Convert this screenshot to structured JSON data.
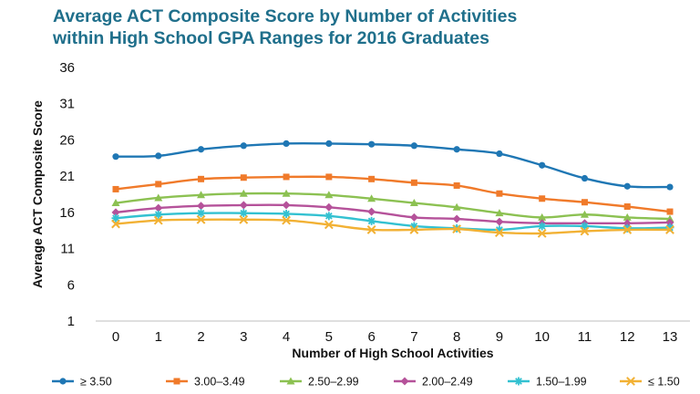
{
  "chart_data": {
    "type": "line",
    "title_lines": [
      "Average ACT Composite Score by Number of Activities",
      "within High School GPA Ranges for 2016 Graduates"
    ],
    "xlabel": "Number of High School Activities",
    "ylabel": "Average ACT Composite Score",
    "x": [
      0,
      1,
      2,
      3,
      4,
      5,
      6,
      7,
      8,
      9,
      10,
      11,
      12,
      13
    ],
    "x_ticks": [
      "0",
      "1",
      "2",
      "3",
      "4",
      "5",
      "6",
      "7",
      "8",
      "9",
      "10",
      "11",
      "12",
      "13"
    ],
    "y_ticks": [
      "1",
      "6",
      "11",
      "16",
      "21",
      "26",
      "31",
      "36"
    ],
    "ylim": [
      1,
      36
    ],
    "grid": false,
    "legend_position": "bottom",
    "series": [
      {
        "name": "≥ 3.50",
        "color": "#1f77b4",
        "marker": "circle",
        "values": [
          23.7,
          23.8,
          24.7,
          25.2,
          25.5,
          25.5,
          25.4,
          25.2,
          24.7,
          24.1,
          22.5,
          20.7,
          19.6,
          19.5
        ]
      },
      {
        "name": "3.00–3.49",
        "color": "#f07a2a",
        "marker": "square",
        "values": [
          19.2,
          19.9,
          20.6,
          20.8,
          20.9,
          20.9,
          20.6,
          20.1,
          19.7,
          18.6,
          17.9,
          17.4,
          16.8,
          16.1
        ]
      },
      {
        "name": "2.50–2.99",
        "color": "#8cc152",
        "marker": "triangle",
        "values": [
          17.3,
          18.0,
          18.4,
          18.6,
          18.6,
          18.4,
          17.9,
          17.3,
          16.7,
          15.9,
          15.3,
          15.7,
          15.3,
          15.1
        ]
      },
      {
        "name": "2.00–2.49",
        "color": "#b5529a",
        "marker": "diamond",
        "values": [
          16.0,
          16.6,
          16.9,
          17.0,
          17.0,
          16.7,
          16.1,
          15.3,
          15.1,
          14.7,
          14.5,
          14.5,
          14.5,
          14.6
        ]
      },
      {
        "name": "1.50–1.99",
        "color": "#33c1d1",
        "marker": "asterisk",
        "values": [
          15.2,
          15.7,
          15.9,
          15.9,
          15.8,
          15.5,
          14.8,
          14.1,
          13.8,
          13.6,
          14.1,
          14.1,
          13.8,
          13.9
        ]
      },
      {
        "name": "≤ 1.50",
        "color": "#f2b134",
        "marker": "x",
        "values": [
          14.4,
          14.9,
          15.0,
          15.0,
          14.9,
          14.3,
          13.6,
          13.6,
          13.7,
          13.2,
          13.1,
          13.4,
          13.6,
          13.6
        ]
      }
    ]
  }
}
